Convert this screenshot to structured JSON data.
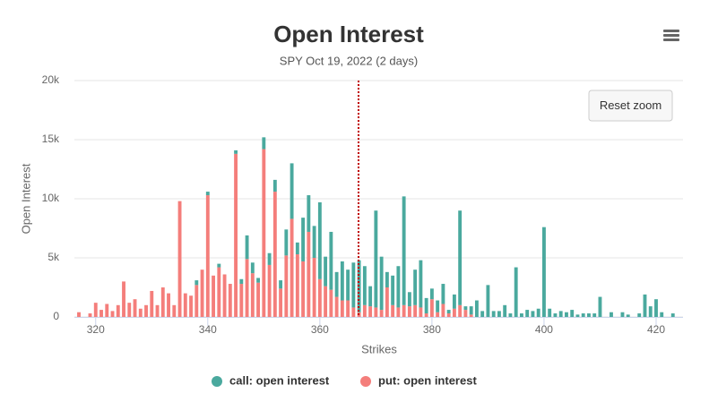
{
  "chart_data": {
    "type": "stacked-bar",
    "title": "Open Interest",
    "subtitle": "SPY Oct 19, 2022 (2 days)",
    "x_label": "Strikes",
    "y_label": "Open Interest",
    "reset_zoom_button": "Reset zoom",
    "x": [
      317,
      318,
      319,
      320,
      321,
      322,
      323,
      324,
      325,
      326,
      327,
      328,
      329,
      330,
      331,
      332,
      333,
      334,
      335,
      336,
      337,
      338,
      339,
      340,
      341,
      342,
      343,
      344,
      345,
      346,
      347,
      348,
      349,
      350,
      351,
      352,
      353,
      354,
      355,
      356,
      357,
      358,
      359,
      360,
      361,
      362,
      363,
      364,
      365,
      366,
      367,
      368,
      369,
      370,
      371,
      372,
      373,
      374,
      375,
      376,
      377,
      378,
      379,
      380,
      381,
      382,
      383,
      384,
      385,
      386,
      387,
      388,
      389,
      390,
      391,
      392,
      393,
      394,
      395,
      396,
      397,
      398,
      399,
      400,
      401,
      402,
      403,
      404,
      405,
      406,
      407,
      408,
      409,
      410,
      411,
      412,
      413,
      414,
      415,
      416,
      417,
      418,
      419,
      420,
      421,
      422,
      423
    ],
    "series": [
      {
        "name": "call: open interest",
        "color": "#4aa99e",
        "values": [
          0,
          0,
          0,
          0,
          0,
          0,
          0,
          0,
          0,
          0,
          0,
          0,
          0,
          0,
          0,
          0,
          0,
          0,
          0,
          0,
          0,
          400,
          0,
          300,
          0,
          300,
          0,
          0,
          300,
          400,
          2000,
          900,
          400,
          1000,
          1000,
          1000,
          700,
          2200,
          4700,
          1000,
          3700,
          3100,
          2700,
          6500,
          2500,
          4900,
          2100,
          3300,
          2600,
          3800,
          4400,
          3300,
          1700,
          8200,
          4500,
          1300,
          2500,
          3500,
          9200,
          1200,
          3000,
          4000,
          1300,
          900,
          1000,
          1700,
          300,
          1200,
          8000,
          300,
          700,
          1400,
          500,
          2700,
          500,
          500,
          1000,
          300,
          4200,
          300,
          600,
          500,
          700,
          7600,
          700,
          300,
          500,
          400,
          600,
          200,
          300,
          300,
          300,
          1700,
          0,
          400,
          0,
          400,
          200,
          0,
          300,
          1900,
          900,
          1500,
          400,
          0,
          300
        ]
      },
      {
        "name": "put: open interest",
        "color": "#f47e7b",
        "values": [
          400,
          0,
          300,
          1200,
          600,
          1100,
          500,
          1000,
          3000,
          1200,
          1500,
          700,
          1000,
          2200,
          1000,
          2500,
          2000,
          1000,
          9800,
          2000,
          1800,
          2700,
          4000,
          10300,
          3500,
          4200,
          3600,
          2800,
          13800,
          2800,
          4900,
          3700,
          2900,
          14200,
          4400,
          10600,
          2400,
          5200,
          8300,
          5300,
          4700,
          7200,
          5000,
          3200,
          2600,
          2300,
          1700,
          1400,
          1400,
          800,
          400,
          1000,
          900,
          800,
          600,
          2500,
          1000,
          800,
          1000,
          900,
          1000,
          800,
          300,
          1500,
          400,
          1100,
          300,
          700,
          1000,
          600,
          200,
          0,
          0,
          0,
          0,
          0,
          0,
          0,
          0,
          0,
          0,
          0,
          0,
          0,
          0,
          0,
          0,
          0,
          0,
          0,
          0,
          0,
          0,
          0,
          0,
          0,
          0,
          0,
          0,
          0,
          0,
          0,
          0,
          0,
          0,
          0,
          0
        ]
      }
    ],
    "plot_line_x": 366.9,
    "xlim": [
      316.2,
      424.8
    ],
    "xticks": [
      320,
      340,
      360,
      380,
      400,
      420
    ],
    "ylim": [
      0,
      20000
    ],
    "yticks": [
      0,
      {
        "value": 5000,
        "label": "5k"
      },
      {
        "value": 10000,
        "label": "10k"
      },
      {
        "value": 15000,
        "label": "15k"
      },
      {
        "value": 20000,
        "label": "20k"
      }
    ],
    "grid": true
  }
}
